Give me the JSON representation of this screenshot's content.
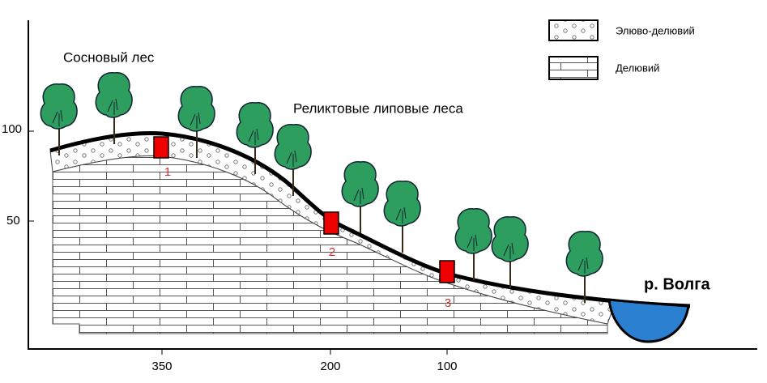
{
  "labels": {
    "pine_forest": "Сосновый лес",
    "linden_forest": "Реликтовые липовые леса",
    "river": "р. Волга"
  },
  "legend": [
    {
      "label": "Элюво-делювий"
    },
    {
      "label": "Делювий"
    }
  ],
  "pits": [
    {
      "label": "1"
    },
    {
      "label": "2"
    },
    {
      "label": "3"
    }
  ],
  "y_axis": {
    "ticks": [
      100,
      50
    ]
  },
  "x_axis": {
    "ticks": [
      350,
      200,
      100
    ]
  }
}
